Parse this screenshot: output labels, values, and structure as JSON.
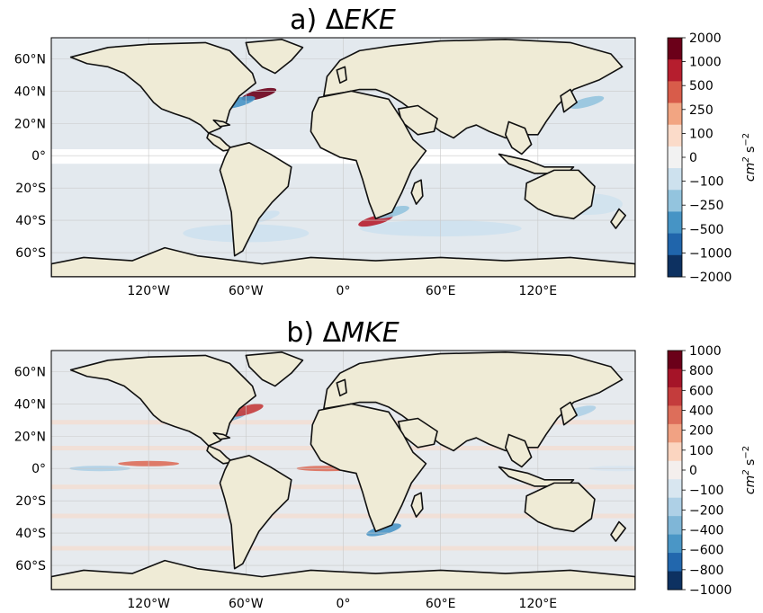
{
  "colors": {
    "land": "#efebd6",
    "ocean_neutral": "#e3e9ee",
    "coast": "#111111",
    "grid": "#c9c9c9"
  },
  "chart_data": [
    {
      "type": "heatmap",
      "id": "eke",
      "title_prefix": "a) Δ",
      "title_main": "EKE",
      "x_ticks": [
        "120°W",
        "60°W",
        "0°",
        "60°E",
        "120°E"
      ],
      "x_tick_values": [
        -120,
        -60,
        0,
        60,
        120
      ],
      "y_ticks": [
        "60°N",
        "40°N",
        "20°N",
        "0°",
        "20°S",
        "40°S",
        "60°S"
      ],
      "y_tick_values": [
        60,
        40,
        20,
        0,
        -20,
        -40,
        -60
      ],
      "xlim": [
        -180,
        180
      ],
      "ylim": [
        -75,
        73
      ],
      "colorbar": {
        "levels": [
          "2000",
          "1000",
          "500",
          "250",
          "100",
          "0",
          "−100",
          "−250",
          "−500",
          "−1000",
          "−2000"
        ],
        "colors": [
          "#6b0019",
          "#b61e2e",
          "#d85c4a",
          "#f2a582",
          "#fbdbc9",
          "#f2f2f2",
          "#cde1ee",
          "#93c4de",
          "#4694c5",
          "#2065ab",
          "#0d3161"
        ],
        "unit_base": "cm",
        "unit_exp1": "2",
        "unit_mid": " s",
        "unit_exp2": "−2"
      },
      "features": [
        {
          "name": "gulf-stream-positive",
          "lon": -52,
          "lat": 38,
          "value": 1500
        },
        {
          "name": "gulf-stream-negative",
          "lon": -65,
          "lat": 33,
          "value": -1000
        },
        {
          "name": "kuroshio-negative",
          "lon": 150,
          "lat": 33,
          "value": -500
        },
        {
          "name": "agulhas-positive",
          "lon": 20,
          "lat": -40,
          "value": 700
        },
        {
          "name": "agulhas-negative",
          "lon": 30,
          "lat": -35,
          "value": -500
        },
        {
          "name": "brazil-malvinas-negative",
          "lon": -50,
          "lat": -38,
          "value": -250
        },
        {
          "name": "equatorial-band-masked",
          "lon": 0,
          "lat": 0,
          "value": 0
        }
      ]
    },
    {
      "type": "heatmap",
      "id": "mke",
      "title_prefix": "b) Δ",
      "title_main": "MKE",
      "x_ticks": [
        "120°W",
        "60°W",
        "0°",
        "60°E",
        "120°E"
      ],
      "x_tick_values": [
        -120,
        -60,
        0,
        60,
        120
      ],
      "y_ticks": [
        "60°N",
        "40°N",
        "20°N",
        "0°",
        "20°S",
        "40°S",
        "60°S"
      ],
      "y_tick_values": [
        60,
        40,
        20,
        0,
        -20,
        -40,
        -60
      ],
      "xlim": [
        -180,
        180
      ],
      "ylim": [
        -75,
        73
      ],
      "colorbar": {
        "levels": [
          "1000",
          "800",
          "600",
          "400",
          "200",
          "100",
          "0",
          "−100",
          "−200",
          "−400",
          "−600",
          "−800",
          "−1000"
        ],
        "colors": [
          "#6b0019",
          "#a51428",
          "#c43c3c",
          "#dd6e5a",
          "#f1a283",
          "#fbd5c0",
          "#f4efed",
          "#d8e6f0",
          "#aed0e6",
          "#7fb6d7",
          "#4a96c6",
          "#2267ad",
          "#0d3161"
        ],
        "unit_base": "cm",
        "unit_exp1": "2",
        "unit_mid": " s",
        "unit_exp2": "−2"
      },
      "features": [
        {
          "name": "equatorial-pacific-negative",
          "lon": -150,
          "lat": 0,
          "value": -400
        },
        {
          "name": "equatorial-pacific-positive",
          "lon": -120,
          "lat": 3,
          "value": 200
        },
        {
          "name": "equatorial-atlantic-positive",
          "lon": -10,
          "lat": 0,
          "value": 200
        },
        {
          "name": "gulf-stream-negative",
          "lon": -70,
          "lat": 32,
          "value": -600
        },
        {
          "name": "gulf-stream-positive",
          "lon": -60,
          "lat": 36,
          "value": 400
        },
        {
          "name": "kuroshio-negative",
          "lon": 145,
          "lat": 35,
          "value": -400
        },
        {
          "name": "agulhas-mixed",
          "lon": 25,
          "lat": -38,
          "value": -800
        },
        {
          "name": "equatorial-indopacific-negative",
          "lon": 170,
          "lat": 0,
          "value": -200
        }
      ]
    }
  ]
}
